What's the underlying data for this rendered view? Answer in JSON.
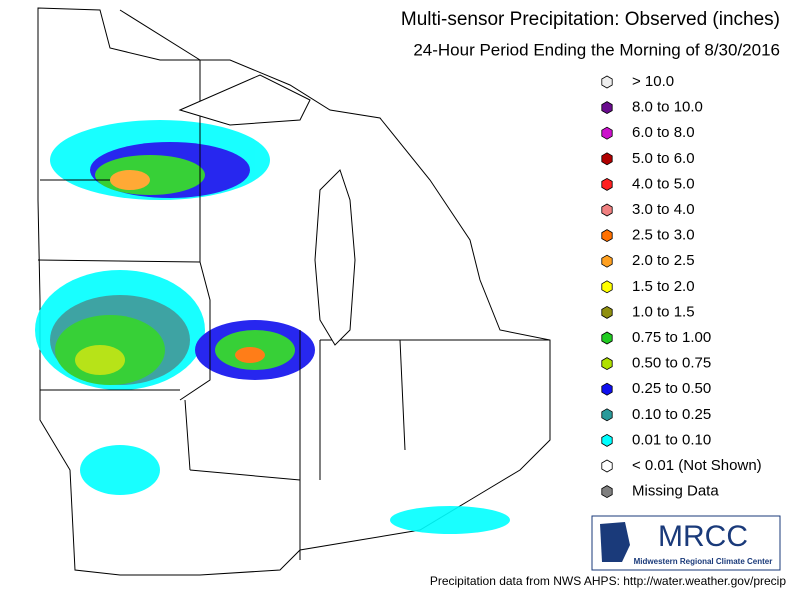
{
  "header": {
    "title": "Multi-sensor Precipitation:  Observed (inches)",
    "subtitle": "24-Hour Period Ending the Morning of 8/30/2016"
  },
  "legend": [
    {
      "label": "> 10.0",
      "color": "#eeeeee"
    },
    {
      "label": "8.0 to 10.0",
      "color": "#6a0d8e"
    },
    {
      "label": "6.0 to 8.0",
      "color": "#cc11cc"
    },
    {
      "label": "5.0 to 6.0",
      "color": "#b00000"
    },
    {
      "label": "4.0 to 5.0",
      "color": "#ff2020"
    },
    {
      "label": "3.0 to 4.0",
      "color": "#f08080"
    },
    {
      "label": "2.5 to 3.0",
      "color": "#ff7000"
    },
    {
      "label": "2.0 to 2.5",
      "color": "#ffa020"
    },
    {
      "label": "1.5 to 2.0",
      "color": "#ffff00"
    },
    {
      "label": "1.0 to 1.5",
      "color": "#909010"
    },
    {
      "label": "0.75 to 1.00",
      "color": "#22cc22"
    },
    {
      "label": "0.50 to 0.75",
      "color": "#b0e000"
    },
    {
      "label": "0.25 to 0.50",
      "color": "#1010ee"
    },
    {
      "label": "0.10 to 0.25",
      "color": "#2a9a9a"
    },
    {
      "label": "0.01 to 0.10",
      "color": "#00ffff"
    },
    {
      "label": "< 0.01 (Not Shown)",
      "color": "#ffffff"
    },
    {
      "label": "Missing Data",
      "color": "#808080"
    }
  ],
  "logo": {
    "name": "MRCC",
    "full_name": "Midwestern Regional Climate Center"
  },
  "footer": "Precipitation data from NWS AHPS: http://water.weather.gov/precip"
}
